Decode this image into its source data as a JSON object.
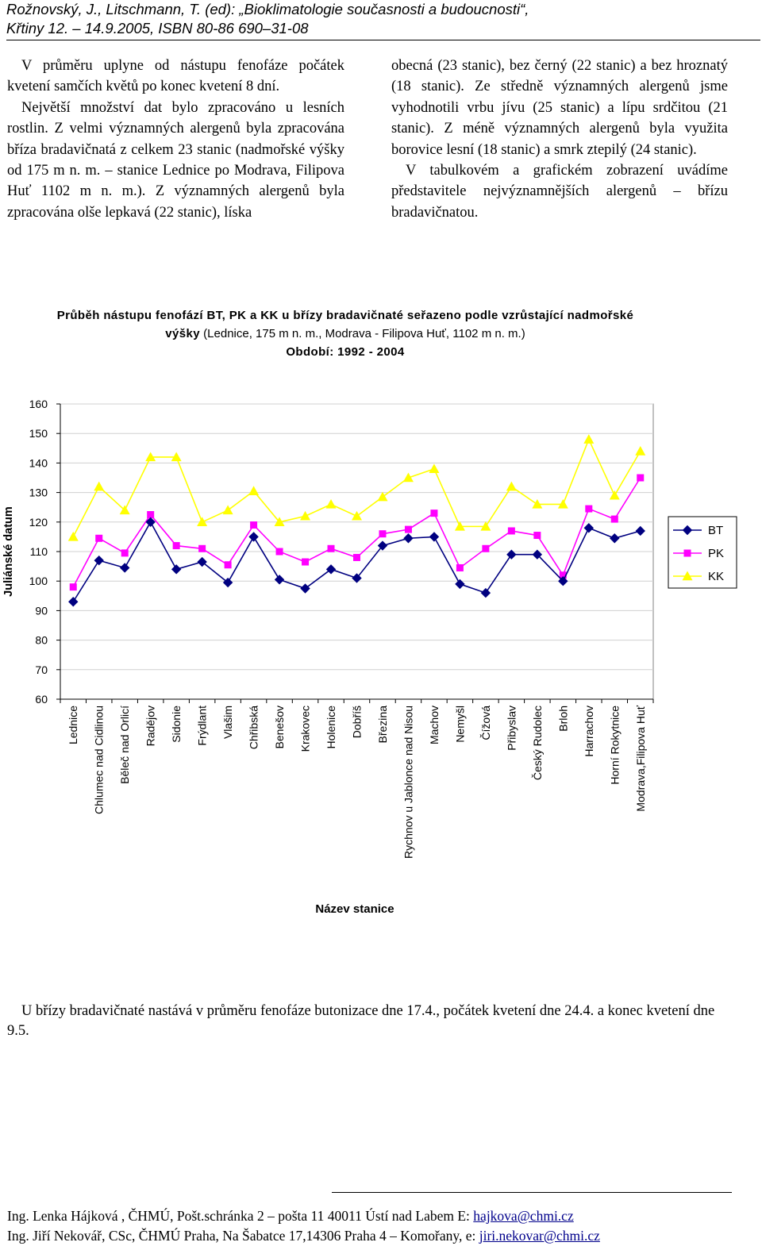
{
  "header": {
    "line1": "Rožnovský, J., Litschmann, T. (ed): „Bioklimatologie současnosti a budoucnosti“,",
    "line2": "Křtiny 12. – 14.9.2005, ISBN 80-86 690–31-08"
  },
  "left_column": {
    "p1": "V průměru uplyne od nástupu fenofáze počátek kvetení samčích květů po konec kvetení 8 dní.",
    "p2": "Největší množství dat bylo zpracováno u lesních rostlin. Z velmi významných alergenů byla zpracována bříza bradavičnatá z celkem 23 stanic (nadmořské výšky od 175 m n. m. – stanice Lednice po Modrava, Filipova Huť 1102 m n. m.). Z významných alergenů byla zpracována olše lepkavá (22 stanic), líska"
  },
  "right_column": {
    "p1": "obecná (23 stanic), bez černý (22 stanic) a bez hroznatý (18 stanic). Ze středně významných alergenů jsme vyhodnotili vrbu jívu (25 stanic) a lípu srdčitou (21 stanic). Z méně významných alergenů byla využita borovice lesní (18 stanic) a smrk ztepilý (24 stanic).",
    "p2": "V tabulkovém a grafickém zobrazení uvádíme představitele nejvýznamnějších alergenů – břízu bradavičnatou."
  },
  "chart_data": {
    "type": "line",
    "title_bold": "Průběh nástupu fenofází BT, PK a KK u břízy bradavičnaté seřazeno podle vzrůstající nadmořské výšky",
    "title_rest": " (Lednice, 175 m n. m., Modrava - Filipova Huť, 1102 m n. m.)",
    "subtitle": "Období: 1992 - 2004",
    "xlabel": "Název stanice",
    "ylabel": "Juliánské datum",
    "ylim": [
      60,
      160
    ],
    "yticks": [
      60,
      70,
      80,
      90,
      100,
      110,
      120,
      130,
      140,
      150,
      160
    ],
    "grid": true,
    "legend_position": "right",
    "categories": [
      "Lednice",
      "Chlumec nad Cidlinou",
      "Běleč nad Orlicí",
      "Radějov",
      "Sidonie",
      "Frýdlant",
      "Vlašim",
      "Chřibská",
      "Benešov",
      "Krakovec",
      "Holenice",
      "Dobříš",
      "Březina",
      "Rychnov u Jablonce nad Nisou",
      "Machov",
      "Nemyšl",
      "Čížová",
      "Přibyslav",
      "Český Rudolec",
      "Brloh",
      "Harrachov",
      "Horní Rokytnice",
      "Modrava,Filipova Huť"
    ],
    "series": [
      {
        "name": "BT",
        "color": "#000080",
        "marker": "diamond",
        "values": [
          93,
          107,
          104.5,
          120,
          104,
          106.5,
          99.5,
          115,
          100.5,
          97.5,
          104,
          101,
          112,
          114.5,
          115,
          99,
          96,
          109,
          109,
          100,
          118,
          114.5,
          117
        ]
      },
      {
        "name": "PK",
        "color": "#ff00ff",
        "marker": "square",
        "values": [
          98,
          114.5,
          109.5,
          122.5,
          112,
          111,
          105.5,
          119,
          110,
          106.5,
          111,
          108,
          116,
          117.5,
          123,
          104.5,
          111,
          117,
          115.5,
          102,
          124.5,
          121,
          135
        ]
      },
      {
        "name": "KK",
        "color": "#ffff00",
        "marker": "triangle",
        "values": [
          115,
          132,
          124,
          142,
          142,
          120,
          124,
          130.5,
          120,
          122,
          126,
          122,
          128.5,
          135,
          138,
          118.5,
          118.5,
          132,
          126,
          126,
          148,
          129,
          144
        ]
      }
    ]
  },
  "conclusion": "U břízy bradavičnaté nastává v průměru fenofáze butonizace dne 17.4., počátek kvetení dne 24.4. a konec kvetení dne 9.5.",
  "footer": {
    "line1_text": "Ing. Lenka Hájková , ČHMÚ, Pošt.schránka 2 – pošta 11 40011 Ústí nad Labem   E: ",
    "line1_email": "hajkova@chmi.cz",
    "line2_text": "Ing. Jiří Nekovář, CSc, ČHMÚ Praha, Na Šabatce 17,14306 Praha 4 – Komořany,  e: ",
    "line2_email": "jiri.nekovar@chmi.cz"
  }
}
